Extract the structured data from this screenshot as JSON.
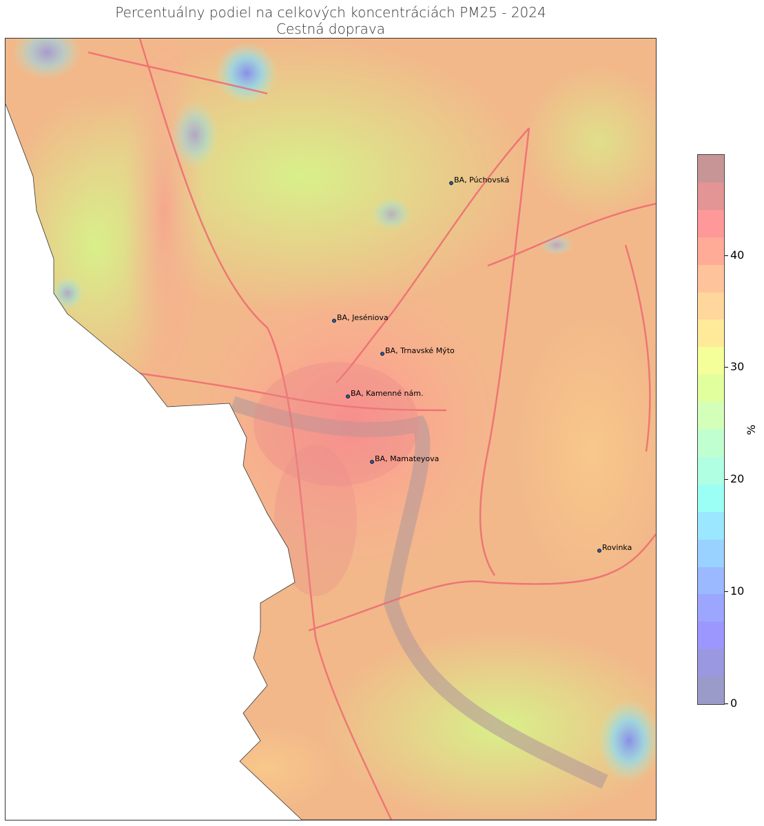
{
  "title": "Percentuálny podiel na celkových koncentráciách PM25 - 2024",
  "subtitle": "Cestná doprava",
  "colorbar": {
    "label": "%",
    "range": [
      0,
      49
    ],
    "ticks": [
      "0",
      "10",
      "20",
      "30",
      "40"
    ],
    "tick_values": [
      0,
      10,
      20,
      30,
      40
    ],
    "colors": [
      "#9a9bc8",
      "#9a98e0",
      "#9c97ff",
      "#9ca6ff",
      "#9bb9ff",
      "#9ad2ff",
      "#9ae7ff",
      "#9cfff5",
      "#b0ffe3",
      "#c0ffd0",
      "#d4ffb8",
      "#e2ff9e",
      "#f4ff9a",
      "#ffea99",
      "#ffd69b",
      "#ffc39b",
      "#ffab98",
      "#ff9898",
      "#e39494",
      "#c79595"
    ]
  },
  "stations": [
    {
      "name": "BA, Púchovská",
      "lon_lat_hint": ""
    },
    {
      "name": "BA, Jeséniova"
    },
    {
      "name": "BA, Trnavské Mýto"
    },
    {
      "name": "BA, Kamenné nám."
    },
    {
      "name": "BA, Mamateyova"
    },
    {
      "name": "Rovinka"
    }
  ]
}
